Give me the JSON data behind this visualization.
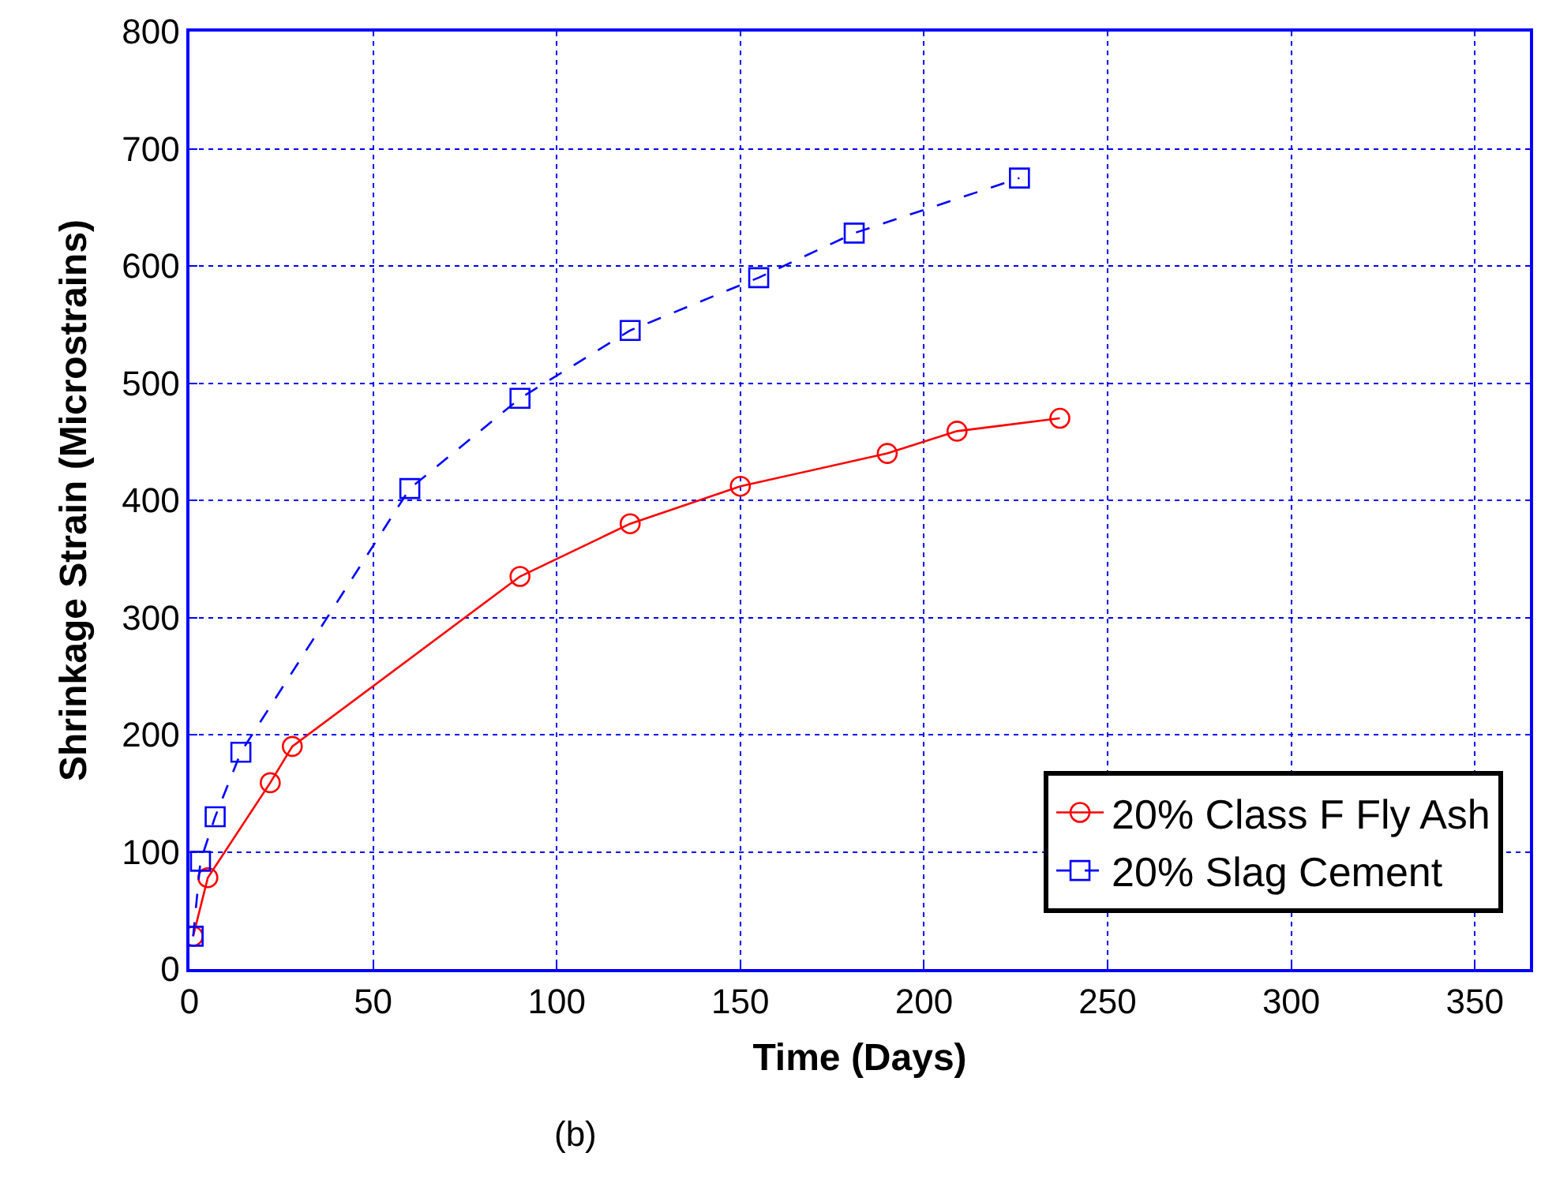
{
  "chart_data": {
    "type": "line",
    "xlabel": "Time (Days)",
    "ylabel": "Shrinkage Strain (Microstrains)",
    "xlim": [
      0,
      365
    ],
    "xticks": [
      0,
      50,
      100,
      150,
      200,
      250,
      300,
      350
    ],
    "ylim": [
      0,
      800
    ],
    "yticks": [
      0,
      100,
      200,
      300,
      400,
      500,
      600,
      700,
      800
    ],
    "grid": true,
    "legend": "bottom right",
    "annotations": [
      "(b)"
    ],
    "series": [
      {
        "name": "20% Class F Fly Ash",
        "color": "#ff0000",
        "marker": "circle",
        "line_style": "solid",
        "x": [
          1,
          5,
          22,
          28,
          90,
          120,
          150,
          190,
          209,
          237
        ],
        "values": [
          28,
          78,
          159,
          190,
          335,
          380,
          412,
          440,
          459,
          470
        ]
      },
      {
        "name": "20% Slag Cement",
        "color": "#0000ff",
        "marker": "square",
        "line_style": "dashed",
        "x": [
          1,
          3,
          7,
          14,
          60,
          90,
          120,
          155,
          181,
          226
        ],
        "values": [
          28,
          92,
          130,
          185,
          410,
          487,
          545,
          590,
          628,
          675
        ]
      }
    ]
  }
}
